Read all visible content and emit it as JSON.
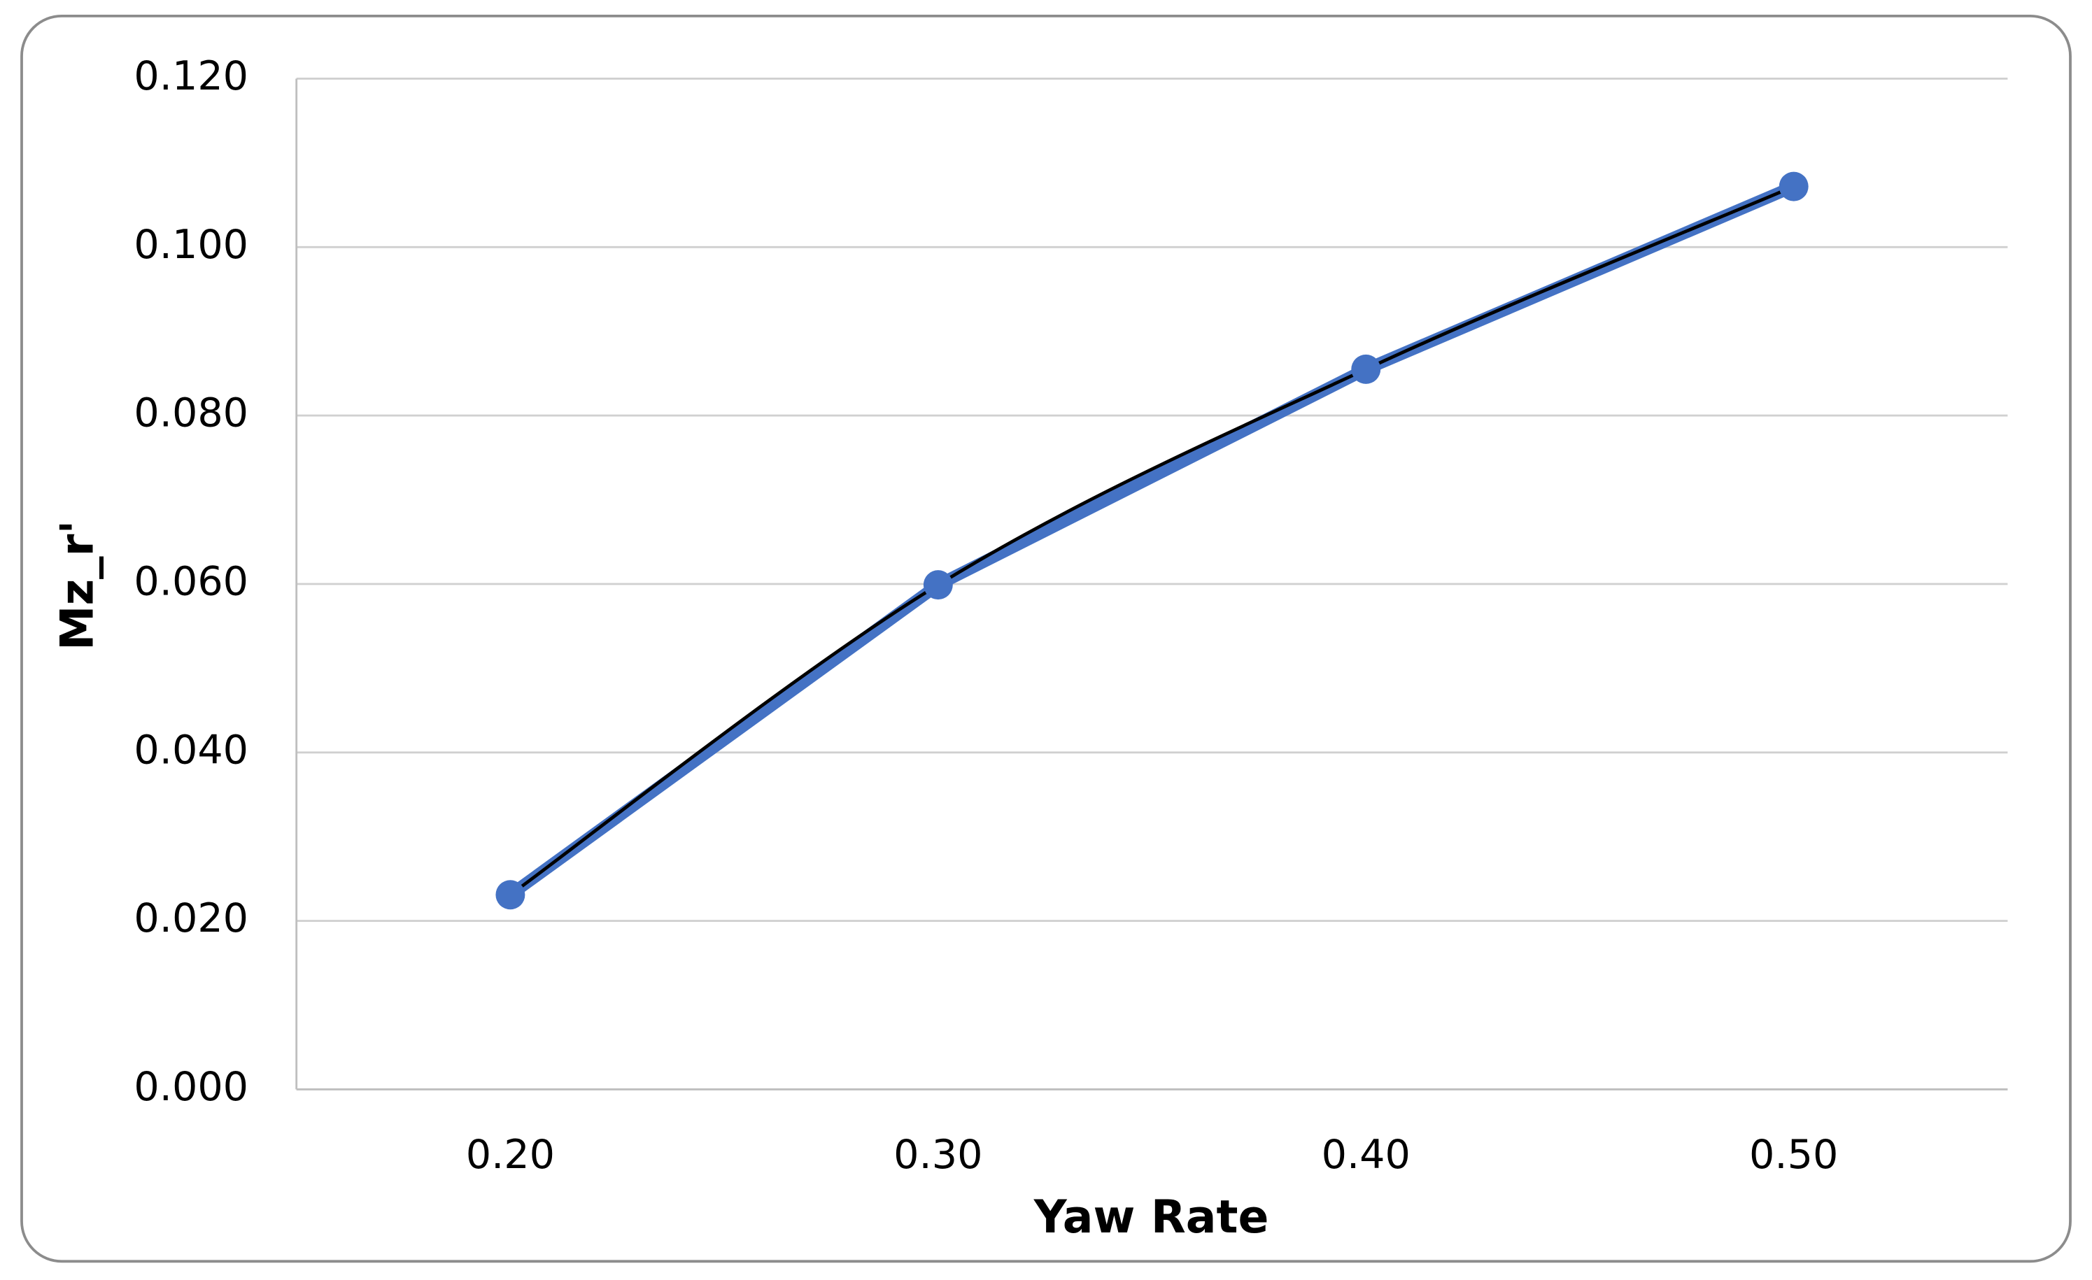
{
  "chart_data": {
    "type": "line",
    "x_label": "Yaw Rate",
    "y_label": "Mz_r'",
    "categories": [
      "0.20",
      "0.30",
      "0.40",
      "0.50"
    ],
    "series": [
      {
        "color": "#4472c4",
        "values": [
          0.0231,
          0.0599,
          0.0855,
          0.1072
        ]
      }
    ],
    "trendline": {
      "color": "#000000",
      "smooth": true
    },
    "ylim": [
      0,
      0.12
    ],
    "yticks": [
      {
        "value": 0,
        "label": "0.000"
      },
      {
        "value": 0.02,
        "label": "0.020"
      },
      {
        "value": 0.04,
        "label": "0.040"
      },
      {
        "value": 0.06,
        "label": "0.060"
      },
      {
        "value": 0.08,
        "label": "0.080"
      },
      {
        "value": 0.1,
        "label": "0.100"
      },
      {
        "value": 0.12,
        "label": "0.120"
      }
    ],
    "grid": true,
    "markers": true
  }
}
